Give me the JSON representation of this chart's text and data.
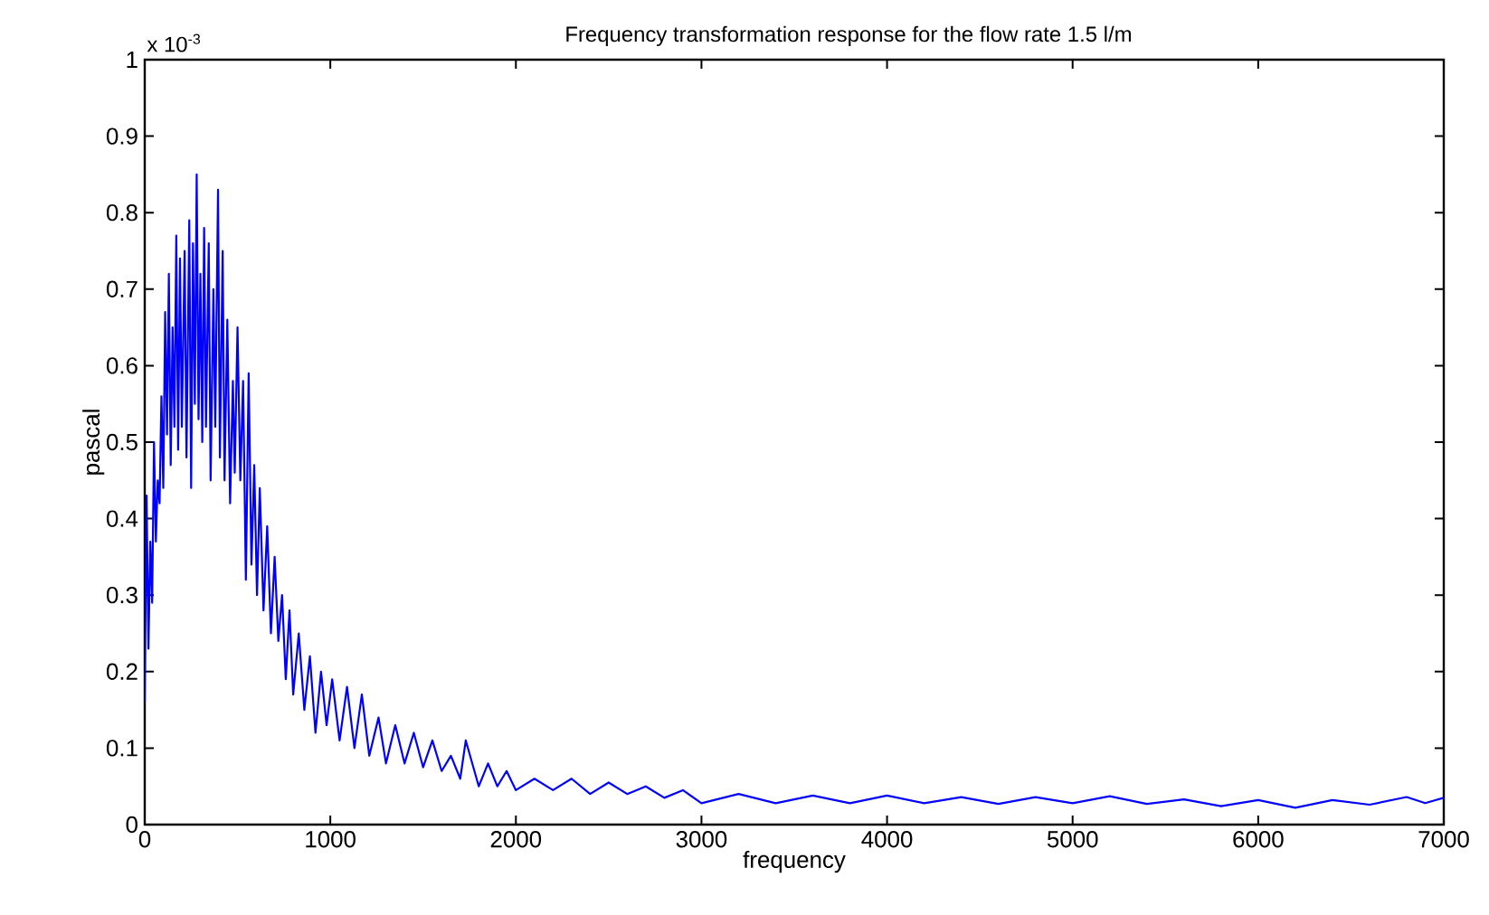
{
  "chart_data": {
    "type": "line",
    "title": "Frequency transformation response for the flow rate 1.5 l/m",
    "xlabel": "frequency",
    "ylabel": "pascal",
    "annotations": [
      "x 10$^{-3}$"
    ],
    "xlim": [
      0,
      7000
    ],
    "ylim": [
      0,
      1
    ],
    "xticks": [
      0,
      1000,
      2000,
      3000,
      4000,
      5000,
      6000,
      7000
    ],
    "yticks": [
      0,
      {
        "value": 0.1,
        "label": "0.1"
      },
      {
        "value": 0.2,
        "label": "0.2"
      },
      {
        "value": 0.3,
        "label": "0.3"
      },
      {
        "value": 0.4,
        "label": "0.4"
      },
      {
        "value": 0.5,
        "label": "0.5"
      },
      {
        "value": 0.6,
        "label": "0.6"
      },
      {
        "value": 0.7,
        "label": "0.7"
      },
      {
        "value": 0.8,
        "label": "0.8"
      },
      {
        "value": 0.9,
        "label": "0.9"
      },
      1
    ],
    "grid": false,
    "marker": "none",
    "line_style": "solid",
    "series": [
      {
        "color": "#0000ff",
        "x": [
          0,
          10,
          20,
          30,
          40,
          50,
          60,
          70,
          80,
          90,
          100,
          110,
          120,
          130,
          140,
          150,
          160,
          170,
          180,
          190,
          200,
          215,
          225,
          240,
          250,
          260,
          270,
          280,
          290,
          300,
          310,
          320,
          330,
          345,
          355,
          370,
          380,
          395,
          405,
          420,
          430,
          445,
          460,
          475,
          485,
          500,
          515,
          530,
          545,
          560,
          575,
          590,
          605,
          620,
          640,
          660,
          680,
          700,
          720,
          740,
          760,
          780,
          800,
          830,
          860,
          890,
          920,
          950,
          980,
          1010,
          1050,
          1090,
          1130,
          1170,
          1210,
          1260,
          1300,
          1350,
          1400,
          1450,
          1500,
          1550,
          1600,
          1650,
          1700,
          1730,
          1800,
          1850,
          1900,
          1950,
          2000,
          2100,
          2200,
          2300,
          2400,
          2500,
          2600,
          2700,
          2800,
          2900,
          3000,
          3200,
          3400,
          3600,
          3800,
          4000,
          4200,
          4400,
          4600,
          4800,
          5000,
          5200,
          5400,
          5600,
          5800,
          6000,
          6200,
          6400,
          6600,
          6800,
          6900,
          7000
        ],
        "values": [
          0.16,
          0.43,
          0.23,
          0.37,
          0.29,
          0.5,
          0.37,
          0.45,
          0.42,
          0.56,
          0.44,
          0.67,
          0.51,
          0.72,
          0.47,
          0.65,
          0.52,
          0.77,
          0.49,
          0.74,
          0.52,
          0.75,
          0.48,
          0.79,
          0.44,
          0.76,
          0.55,
          0.85,
          0.53,
          0.72,
          0.5,
          0.78,
          0.52,
          0.76,
          0.45,
          0.7,
          0.52,
          0.83,
          0.48,
          0.75,
          0.45,
          0.66,
          0.42,
          0.58,
          0.46,
          0.65,
          0.45,
          0.58,
          0.32,
          0.59,
          0.34,
          0.47,
          0.3,
          0.44,
          0.28,
          0.39,
          0.25,
          0.35,
          0.24,
          0.3,
          0.19,
          0.28,
          0.17,
          0.25,
          0.15,
          0.22,
          0.12,
          0.2,
          0.13,
          0.19,
          0.11,
          0.18,
          0.1,
          0.17,
          0.09,
          0.14,
          0.08,
          0.13,
          0.08,
          0.12,
          0.075,
          0.11,
          0.07,
          0.09,
          0.06,
          0.11,
          0.05,
          0.08,
          0.05,
          0.07,
          0.045,
          0.06,
          0.045,
          0.06,
          0.04,
          0.055,
          0.04,
          0.05,
          0.035,
          0.045,
          0.028,
          0.04,
          0.028,
          0.038,
          0.028,
          0.038,
          0.028,
          0.036,
          0.027,
          0.036,
          0.028,
          0.037,
          0.027,
          0.033,
          0.024,
          0.032,
          0.022,
          0.032,
          0.026,
          0.036,
          0.028,
          0.035
        ]
      }
    ]
  }
}
